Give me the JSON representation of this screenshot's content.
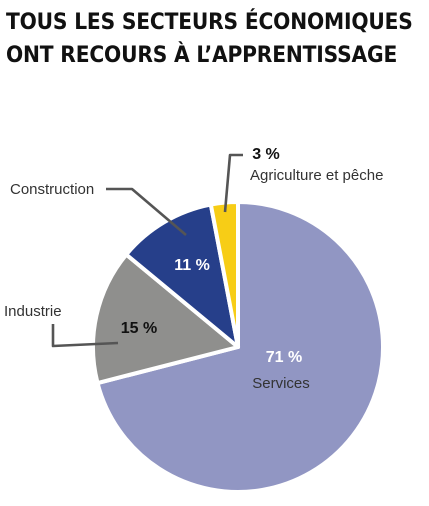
{
  "title": {
    "line1": "TOUS LES SECTEURS ÉCONOMIQUES",
    "line2": "ONT RECOURS À L’APPRENTISSAGE"
  },
  "chart_data": {
    "type": "pie",
    "labels": [
      "Services",
      "Industrie",
      "Construction",
      "Agriculture et pêche"
    ],
    "values": [
      71,
      15,
      11,
      3
    ],
    "value_labels": [
      "71 %",
      "15 %",
      "11 %",
      "3 %"
    ],
    "colors": [
      "#9196c3",
      "#8f8f8d",
      "#263f8a",
      "#f7cd16"
    ],
    "label_colors": [
      "#ffffff",
      "#111111",
      "#ffffff",
      "#111111"
    ]
  }
}
